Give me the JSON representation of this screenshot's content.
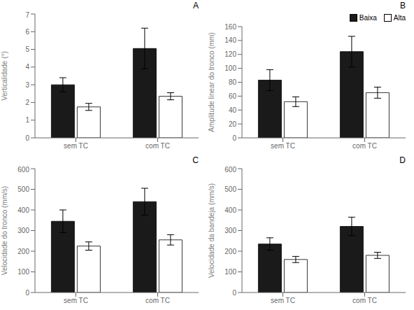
{
  "chart_data": [
    {
      "type": "bar",
      "title": "A",
      "y_label": "Verticalidade (°)",
      "categories": [
        "sem TC",
        "com TC"
      ],
      "series": [
        {
          "name": "Baixa",
          "color": "#1a1a1a",
          "values": [
            3.0,
            5.05
          ],
          "errors": [
            0.4,
            1.15
          ]
        },
        {
          "name": "Alta",
          "color": "#ffffff",
          "values": [
            1.75,
            2.35
          ],
          "errors": [
            0.2,
            0.2
          ]
        }
      ],
      "ylim": [
        0,
        7
      ],
      "yticks": [
        0,
        1,
        2,
        3,
        4,
        5,
        6,
        7
      ]
    },
    {
      "type": "bar",
      "title": "B",
      "y_label": "Amplitude linear do tronco (mm)",
      "categories": [
        "sem TC",
        "com TC"
      ],
      "series": [
        {
          "name": "Baixa",
          "color": "#1a1a1a",
          "values": [
            83,
            124
          ],
          "errors": [
            15,
            22
          ]
        },
        {
          "name": "Alta",
          "color": "#ffffff",
          "values": [
            52,
            65
          ],
          "errors": [
            7,
            8
          ]
        }
      ],
      "ylim": [
        0,
        160
      ],
      "yticks": [
        0,
        20,
        40,
        60,
        80,
        100,
        120,
        140,
        160
      ],
      "legend": "upper right"
    },
    {
      "type": "bar",
      "title": "C",
      "y_label": "Velocidade do tronco (mm/s)",
      "categories": [
        "sem TC",
        "com TC"
      ],
      "series": [
        {
          "name": "Baixa",
          "color": "#1a1a1a",
          "values": [
            345,
            440
          ],
          "errors": [
            55,
            65
          ]
        },
        {
          "name": "Alta",
          "color": "#ffffff",
          "values": [
            225,
            255
          ],
          "errors": [
            20,
            25
          ]
        }
      ],
      "ylim": [
        0,
        600
      ],
      "yticks": [
        0,
        100,
        200,
        300,
        400,
        500,
        600
      ]
    },
    {
      "type": "bar",
      "title": "D",
      "y_label": "Velocidade da bandeja (mm/s)",
      "categories": [
        "sem TC",
        "com TC"
      ],
      "series": [
        {
          "name": "Baixa",
          "color": "#1a1a1a",
          "values": [
            235,
            320
          ],
          "errors": [
            30,
            45
          ]
        },
        {
          "name": "Alta",
          "color": "#ffffff",
          "values": [
            160,
            180
          ],
          "errors": [
            15,
            15
          ]
        }
      ],
      "ylim": [
        0,
        600
      ],
      "yticks": [
        0,
        100,
        200,
        300,
        400,
        500,
        600
      ]
    }
  ]
}
